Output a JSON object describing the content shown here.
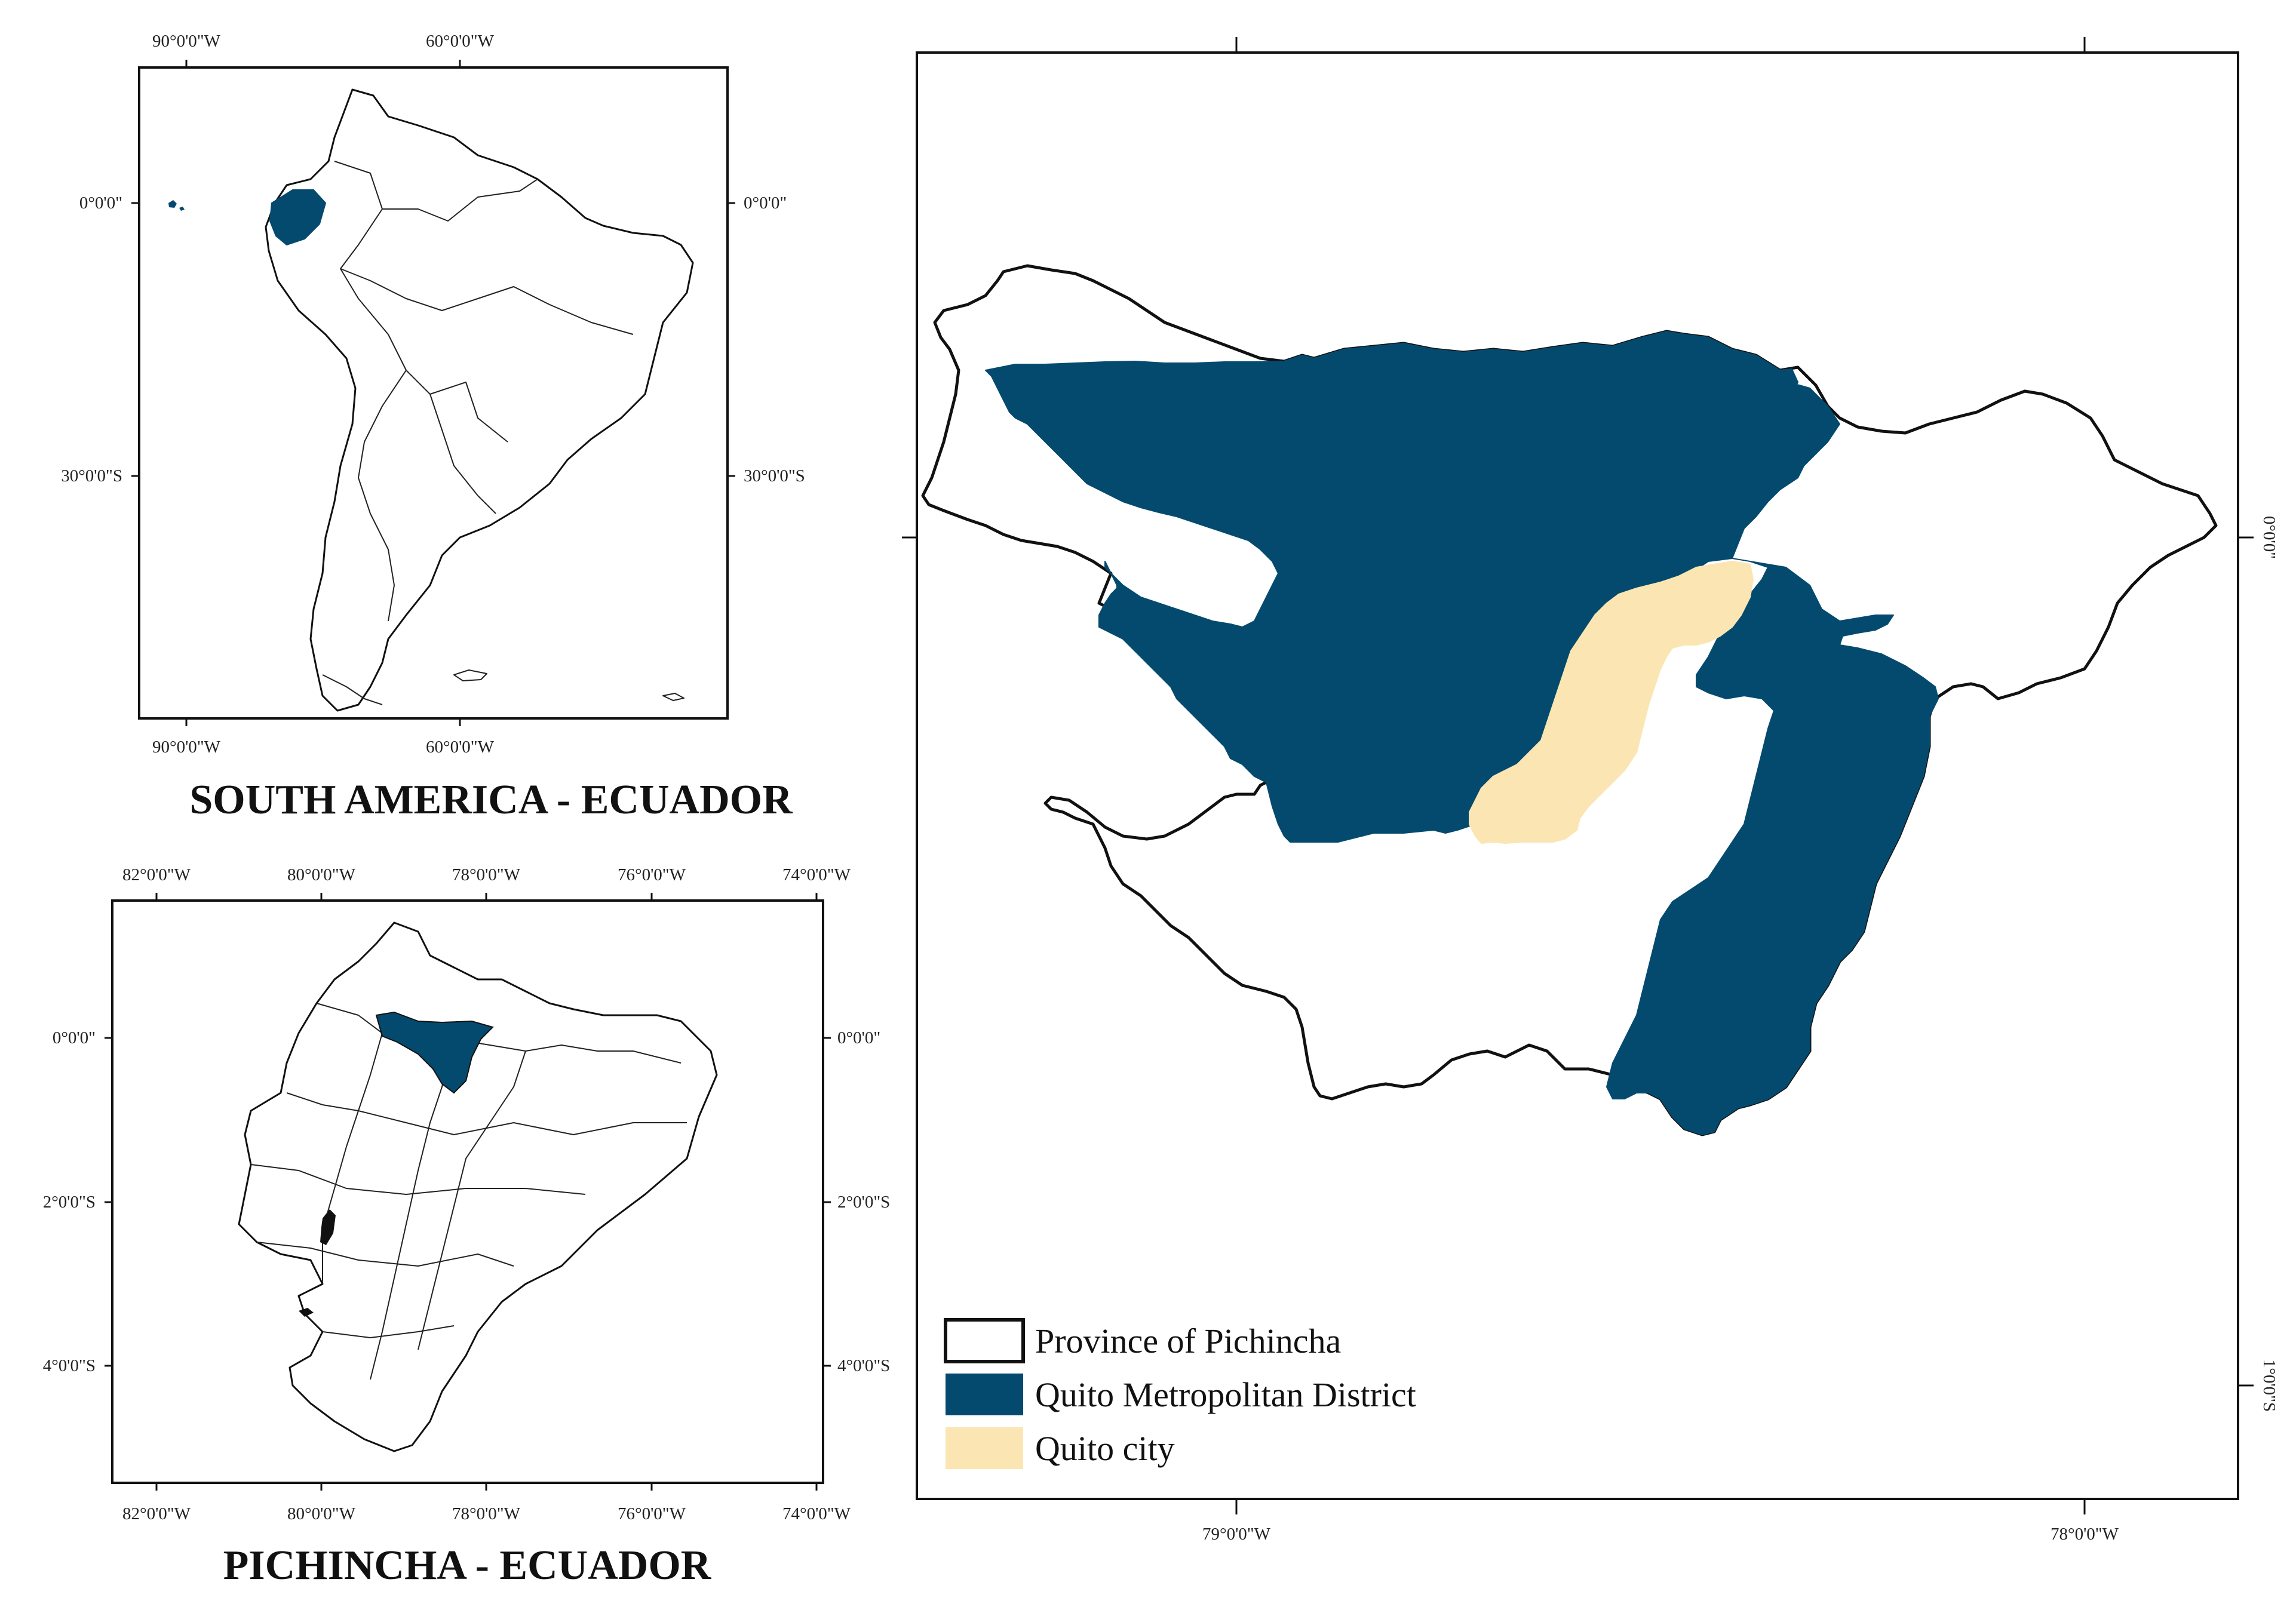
{
  "maps": {
    "south_america": {
      "title": "SOUTH AMERICA - ECUADOR",
      "top_labels": [
        "90°0'0\"W",
        "60°0'0\"W"
      ],
      "bottom_labels": [
        "90°0'0\"W",
        "60°0'0\"W"
      ],
      "left_labels": [
        "0°0'0\"",
        "30°0'0\"S"
      ],
      "right_labels": [
        "0°0'0\"",
        "30°0'0\"S"
      ]
    },
    "ecuador": {
      "title": "PICHINCHA - ECUADOR",
      "top_labels": [
        "82°0'0\"W",
        "80°0'0\"W",
        "78°0'0\"W",
        "76°0'0\"W",
        "74°0'0\"W"
      ],
      "bottom_labels": [
        "82°0'0\"W",
        "80°0'0\"W",
        "78°0'0\"W",
        "76°0'0\"W",
        "74°0'0\"W"
      ],
      "left_labels": [
        "0°0'0\"",
        "2°0'0\"S",
        "4°0'0\"S"
      ],
      "right_labels": [
        "0°0'0\"",
        "2°0'0\"S",
        "4°0'0\"S"
      ]
    },
    "pichincha": {
      "bottom_labels": [
        "79°0'0\"W",
        "78°0'0\"W"
      ],
      "right_labels": [
        "0°0'0\"",
        "1°0'0\"S"
      ]
    }
  },
  "legend": {
    "items": [
      {
        "label": "Province of Pichincha",
        "color": "#ffffff"
      },
      {
        "label": "Quito Metropolitan District",
        "color": "#044a6e"
      },
      {
        "label": "Quito city",
        "color": "#fbe6b3"
      }
    ]
  },
  "colors": {
    "district": "#044a6e",
    "city": "#fbe6b3",
    "outline": "#111111"
  }
}
